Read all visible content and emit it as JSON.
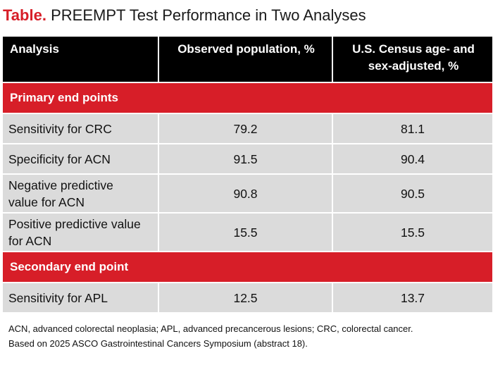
{
  "caption": {
    "label": "Table.",
    "title": "PREEMPT Test Performance in Two Analyses"
  },
  "table": {
    "headers": [
      "Analysis",
      "Observed population, %",
      "U.S. Census age- and sex-adjusted, %"
    ],
    "sections": [
      {
        "title": "Primary end points",
        "rows": [
          {
            "name_lines": [
              "Sensitivity for CRC"
            ],
            "observed": "79.2",
            "adjusted": "81.1"
          },
          {
            "name_lines": [
              "Specificity for ACN"
            ],
            "observed": "91.5",
            "adjusted": "90.4"
          },
          {
            "name_lines": [
              "Negative predictive",
              "value for ACN"
            ],
            "observed": "90.8",
            "adjusted": "90.5"
          },
          {
            "name_lines": [
              "Positive predictive value",
              "for ACN"
            ],
            "observed": "15.5",
            "adjusted": "15.5"
          }
        ]
      },
      {
        "title": "Secondary end point",
        "rows": [
          {
            "name_lines": [
              "Sensitivity for APL"
            ],
            "observed": "12.5",
            "adjusted": "13.7"
          }
        ]
      }
    ]
  },
  "footnotes": [
    "ACN, advanced colorectal neoplasia; APL, advanced precancerous lesions; CRC, colorectal cancer.",
    "Based on 2025 ASCO Gastrointestinal Cancers Symposium (abstract 18)."
  ],
  "colors": {
    "accent_red": "#d71e28",
    "header_black": "#000000",
    "cell_gray": "#dbdbdb"
  }
}
